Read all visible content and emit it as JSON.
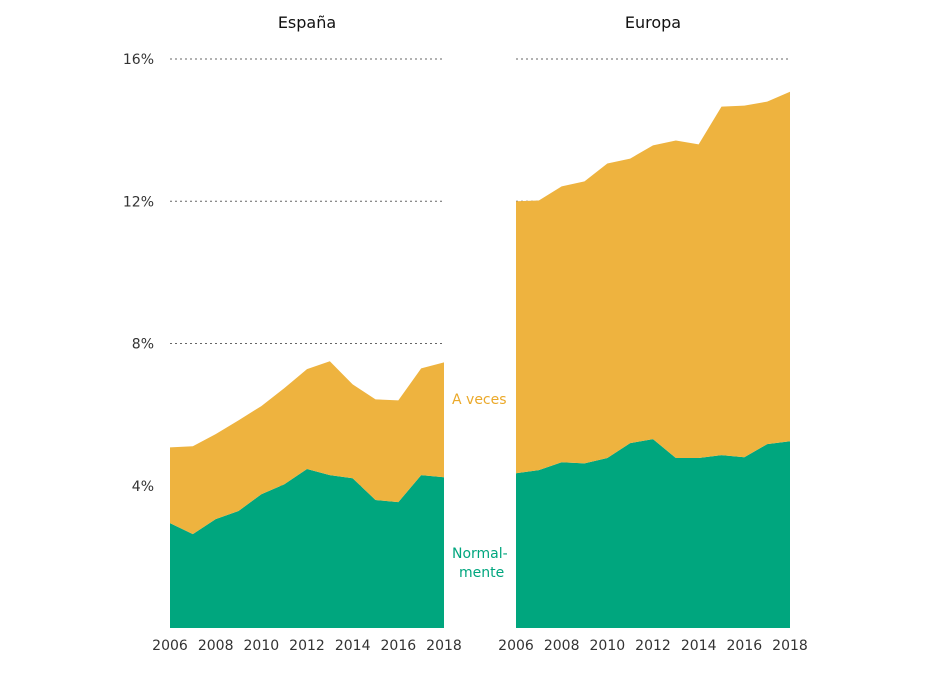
{
  "chart_data": [
    {
      "type": "area",
      "stacked": true,
      "title": "España",
      "x": [
        2006,
        2007,
        2008,
        2009,
        2010,
        2011,
        2012,
        2013,
        2014,
        2015,
        2016,
        2017,
        2018
      ],
      "x_tick_labels": [
        "2006",
        "2008",
        "2010",
        "2012",
        "2014",
        "2016",
        "2018"
      ],
      "y_tick_labels": [
        "4%",
        "8%",
        "12%",
        "16%"
      ],
      "ylim": [
        0,
        16
      ],
      "y_unit": "%",
      "grid": "dotted horizontal",
      "series": [
        {
          "name": "Normalmente",
          "label_lines": [
            "Normal-",
            "mente"
          ],
          "color": "#00A67E",
          "values": [
            2.95,
            2.64,
            3.06,
            3.29,
            3.76,
            4.04,
            4.47,
            4.3,
            4.21,
            3.6,
            3.54,
            4.3,
            4.24
          ]
        },
        {
          "name": "A veces",
          "label_lines": [
            "A veces"
          ],
          "color": "#EEB33F",
          "values": [
            2.13,
            2.47,
            2.39,
            2.55,
            2.48,
            2.7,
            2.81,
            3.2,
            2.64,
            2.83,
            2.86,
            3.0,
            3.23
          ]
        }
      ]
    },
    {
      "type": "area",
      "stacked": true,
      "title": "Europa",
      "x": [
        2006,
        2007,
        2008,
        2009,
        2010,
        2011,
        2012,
        2013,
        2014,
        2015,
        2016,
        2017,
        2018
      ],
      "x_tick_labels": [
        "2006",
        "2008",
        "2010",
        "2012",
        "2014",
        "2016",
        "2018"
      ],
      "ylim": [
        0,
        16
      ],
      "y_unit": "%",
      "grid": "dotted horizontal",
      "series": [
        {
          "name": "Normalmente",
          "color": "#00A67E",
          "values": [
            4.35,
            4.44,
            4.66,
            4.63,
            4.78,
            5.2,
            5.31,
            4.78,
            4.78,
            4.86,
            4.8,
            5.17,
            5.25
          ]
        },
        {
          "name": "A veces",
          "color": "#EEB33F",
          "values": [
            7.65,
            7.58,
            7.76,
            7.93,
            8.28,
            8.0,
            8.26,
            8.93,
            8.82,
            9.8,
            9.89,
            9.63,
            9.83
          ]
        }
      ]
    }
  ],
  "label_colors": {
    "A veces": "#EBA92A",
    "Normalmente": "#00A67E"
  }
}
